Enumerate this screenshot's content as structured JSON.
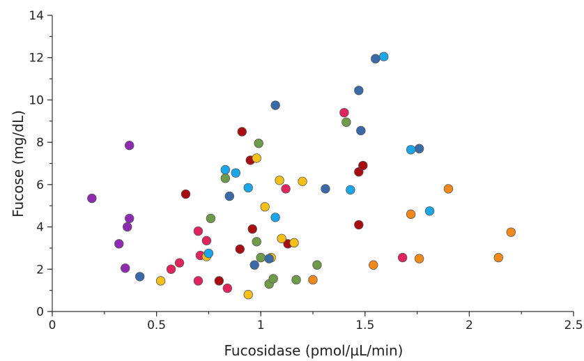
{
  "chart_data": {
    "type": "scatter",
    "title": "",
    "xlabel": "Fucosidase (pmol/µL/min)",
    "ylabel": "Fucose (mg/dL)",
    "xlim": [
      0,
      2.5
    ],
    "ylim": [
      0,
      14
    ],
    "x_ticks": [
      0,
      0.5,
      1,
      1.5,
      2,
      2.5
    ],
    "x_tick_labels": [
      "0",
      "0.5",
      "1",
      "1.5",
      "2",
      "2.5"
    ],
    "x_minor_step": 0.25,
    "y_ticks": [
      0,
      2,
      4,
      6,
      8,
      10,
      12,
      14
    ],
    "y_tick_labels": [
      "0",
      "2",
      "4",
      "6",
      "8",
      "10",
      "12",
      "14"
    ],
    "y_minor_step": 1,
    "grid": false,
    "legend": "none",
    "series": [
      {
        "color": "#8e2bb0",
        "points": [
          [
            0.19,
            5.35
          ],
          [
            0.32,
            3.2
          ],
          [
            0.35,
            2.05
          ],
          [
            0.36,
            4.0
          ],
          [
            0.37,
            4.4
          ],
          [
            0.37,
            7.85
          ]
        ]
      },
      {
        "color": "#e0245e",
        "points": [
          [
            0.57,
            2.0
          ],
          [
            0.61,
            2.3
          ],
          [
            0.7,
            3.8
          ],
          [
            0.7,
            1.45
          ],
          [
            0.71,
            2.65
          ],
          [
            0.74,
            3.35
          ],
          [
            0.84,
            1.1
          ],
          [
            1.12,
            5.8
          ],
          [
            1.4,
            9.4
          ],
          [
            1.68,
            2.55
          ]
        ]
      },
      {
        "color": "#a80d12",
        "points": [
          [
            0.64,
            5.55
          ],
          [
            0.8,
            1.45
          ],
          [
            0.9,
            2.95
          ],
          [
            0.91,
            8.5
          ],
          [
            0.95,
            7.15
          ],
          [
            0.96,
            3.9
          ],
          [
            1.13,
            3.2
          ],
          [
            1.47,
            4.1
          ],
          [
            1.47,
            6.6
          ],
          [
            1.49,
            6.9
          ]
        ]
      },
      {
        "color": "#6f9a4a",
        "points": [
          [
            0.76,
            4.4
          ],
          [
            0.83,
            6.3
          ],
          [
            0.98,
            3.3
          ],
          [
            0.99,
            7.95
          ],
          [
            1.0,
            2.55
          ],
          [
            1.04,
            1.3
          ],
          [
            1.06,
            1.55
          ],
          [
            1.17,
            1.5
          ],
          [
            1.27,
            2.2
          ],
          [
            1.41,
            8.95
          ]
        ]
      },
      {
        "color": "#f2c018",
        "points": [
          [
            0.52,
            1.45
          ],
          [
            0.74,
            2.6
          ],
          [
            0.94,
            0.8
          ],
          [
            0.98,
            7.25
          ],
          [
            1.02,
            4.95
          ],
          [
            1.05,
            2.55
          ],
          [
            1.09,
            6.2
          ],
          [
            1.1,
            3.45
          ],
          [
            1.16,
            3.25
          ],
          [
            1.2,
            6.15
          ]
        ]
      },
      {
        "color": "#ef8a1a",
        "points": [
          [
            1.25,
            1.5
          ],
          [
            1.54,
            2.2
          ],
          [
            1.72,
            4.6
          ],
          [
            1.76,
            2.5
          ],
          [
            1.9,
            5.8
          ],
          [
            2.14,
            2.55
          ],
          [
            2.2,
            3.75
          ]
        ]
      },
      {
        "color": "#3a6ba8",
        "points": [
          [
            0.42,
            1.65
          ],
          [
            0.85,
            5.45
          ],
          [
            0.97,
            2.2
          ],
          [
            1.04,
            2.5
          ],
          [
            1.07,
            9.75
          ],
          [
            1.31,
            5.8
          ],
          [
            1.47,
            10.45
          ],
          [
            1.48,
            8.55
          ],
          [
            1.55,
            11.95
          ],
          [
            1.76,
            7.7
          ]
        ]
      },
      {
        "color": "#1aa6e8",
        "points": [
          [
            0.75,
            2.75
          ],
          [
            0.83,
            6.7
          ],
          [
            0.88,
            6.55
          ],
          [
            0.94,
            5.85
          ],
          [
            1.07,
            4.45
          ],
          [
            1.43,
            5.75
          ],
          [
            1.59,
            12.05
          ],
          [
            1.72,
            7.65
          ],
          [
            1.81,
            4.75
          ]
        ]
      }
    ]
  }
}
